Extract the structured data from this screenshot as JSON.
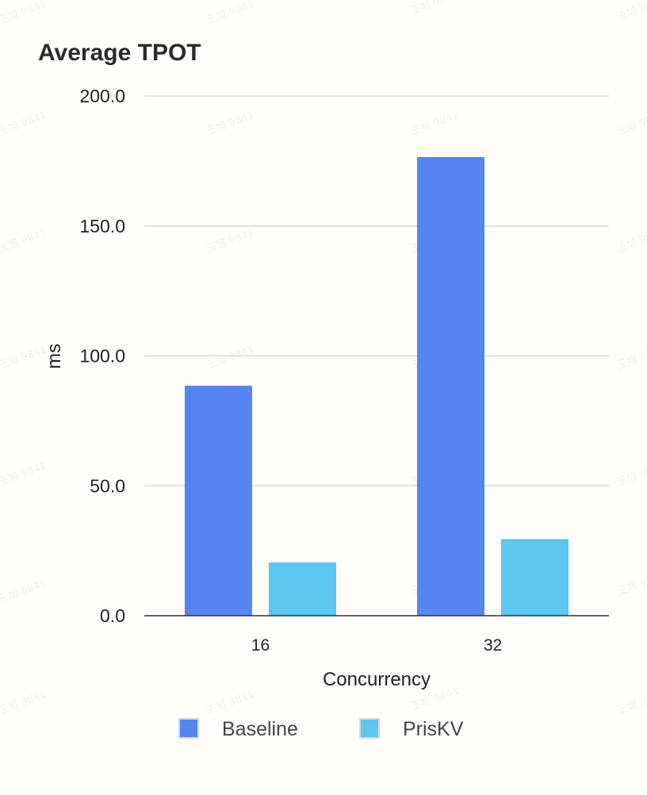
{
  "chart_data": {
    "type": "bar",
    "title": "Average TPOT",
    "xlabel": "Concurrency",
    "ylabel": "ms",
    "categories": [
      "16",
      "32"
    ],
    "series": [
      {
        "name": "Baseline",
        "values": [
          88.5,
          176.5
        ],
        "color": "#5585f2"
      },
      {
        "name": "PrisKV",
        "values": [
          20.5,
          29.5
        ],
        "color": "#5bc6ef"
      }
    ],
    "ylim": [
      0,
      200
    ],
    "yticks": [
      "0.0",
      "50.0",
      "100.0",
      "150.0",
      "200.0"
    ],
    "ytick_values": [
      0,
      50,
      100,
      150,
      200
    ],
    "grid": true,
    "legend_position": "bottom"
  },
  "watermark": "王旭 9841"
}
